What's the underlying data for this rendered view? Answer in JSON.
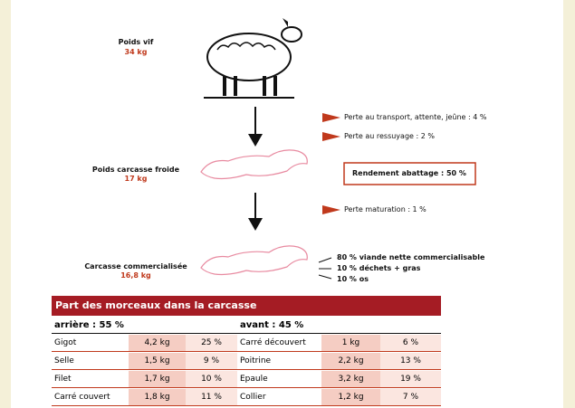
{
  "steps": [
    {
      "label": "Poids vif",
      "value": "34 kg"
    },
    {
      "label": "Poids carcasse froide",
      "value": "17 kg"
    },
    {
      "label": "Carcasse commercialisée",
      "value": "16,8 kg"
    }
  ],
  "losses": [
    "Perte au transport, attente, jeûne : 4 %",
    "Perte au ressuyage : 2 %",
    "Perte maturation : 1 %"
  ],
  "yield": "Rendement abattage : 50 %",
  "breakdown": [
    "80 % viande nette commercialisable",
    "10 % déchets + gras",
    "10 % os"
  ],
  "table": {
    "title": "Part des morceaux dans la carcasse",
    "groups": [
      {
        "heading": "arrière : 55 %",
        "rows": [
          [
            "Gigot",
            "4,2 kg",
            "25 %"
          ],
          [
            "Selle",
            "1,5 kg",
            "9 %"
          ],
          [
            "Filet",
            "1,7 kg",
            "10 %"
          ],
          [
            "Carré couvert",
            "1,8 kg",
            "11 %"
          ]
        ]
      },
      {
        "heading": "avant : 45 %",
        "rows": [
          [
            "Carré découvert",
            "1 kg",
            "6 %"
          ],
          [
            "Poitrine",
            "2,2 kg",
            "13 %"
          ],
          [
            "Epaule",
            "3,2 kg",
            "19 %"
          ],
          [
            "Collier",
            "1,2 kg",
            "7 %"
          ]
        ]
      }
    ]
  }
}
